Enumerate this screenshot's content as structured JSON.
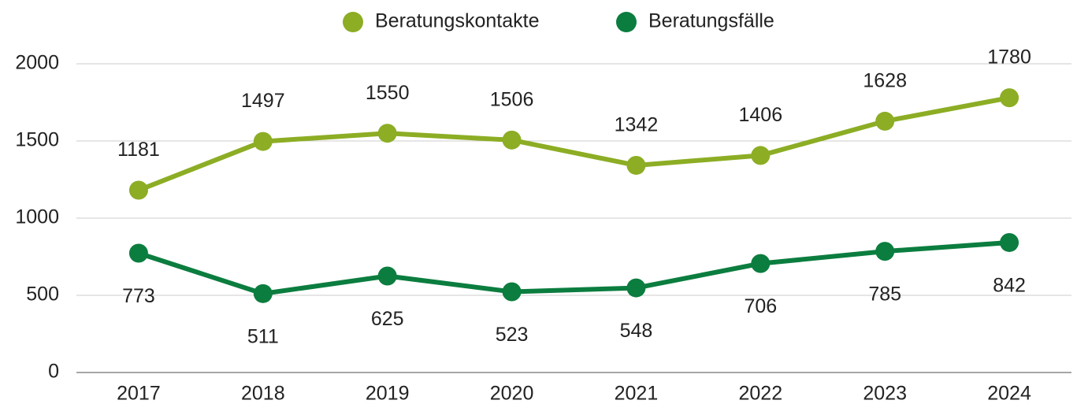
{
  "chart_data": {
    "type": "line",
    "categories": [
      "2017",
      "2018",
      "2019",
      "2020",
      "2021",
      "2022",
      "2023",
      "2024"
    ],
    "series": [
      {
        "name": "Beratungskontakte",
        "color": "#8cad24",
        "values": [
          1181,
          1497,
          1550,
          1506,
          1342,
          1406,
          1628,
          1780
        ]
      },
      {
        "name": "Beratungsfälle",
        "color": "#0b7d3f",
        "values": [
          773,
          511,
          625,
          523,
          548,
          706,
          785,
          842
        ]
      }
    ],
    "ylim": [
      0,
      2000
    ],
    "yticks": [
      0,
      500,
      1000,
      1500,
      2000
    ],
    "grid": true,
    "legend": "top"
  }
}
